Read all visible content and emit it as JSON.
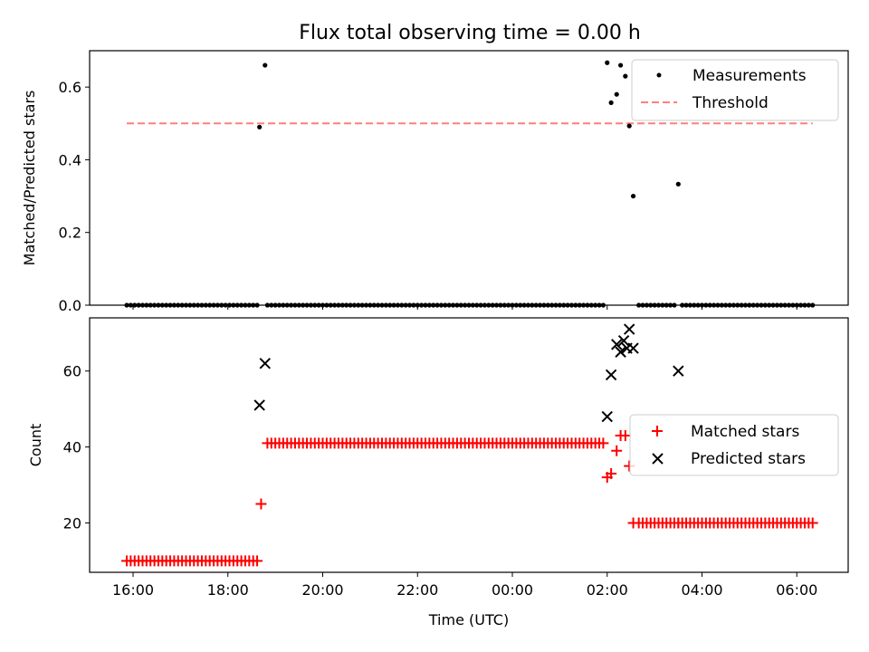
{
  "chart_data": [
    {
      "type": "scatter",
      "title": "Flux total observing time = 0.00 h",
      "xlabel": "",
      "ylabel": "Matched/Predicted stars",
      "xlim": [
        "15:05",
        "07:05"
      ],
      "ylim": [
        0,
        0.7
      ],
      "x_ticks": [
        "16:00",
        "18:00",
        "20:00",
        "22:00",
        "00:00",
        "02:00",
        "04:00",
        "06:00"
      ],
      "y_ticks": [
        "0.0",
        "0.2",
        "0.4",
        "0.6"
      ],
      "legend_position": "upper right",
      "series": [
        {
          "name": "Measurements",
          "marker": "dot",
          "color": "#000000",
          "points": [
            {
              "t": "18:40",
              "y": 0.49
            },
            {
              "t": "18:47",
              "y": 0.66
            },
            {
              "t": "02:00",
              "y": 0.667
            },
            {
              "t": "02:05",
              "y": 0.557
            },
            {
              "t": "02:12",
              "y": 0.58
            },
            {
              "t": "02:17",
              "y": 0.66
            },
            {
              "t": "02:23",
              "y": 0.63
            },
            {
              "t": "02:28",
              "y": 0.493
            },
            {
              "t": "02:33",
              "y": 0.3
            },
            {
              "t": "03:30",
              "y": 0.333
            }
          ],
          "zero_runs": [
            {
              "start": "15:52",
              "end": "18:40",
              "step_min": 5,
              "y": 0
            },
            {
              "start": "18:50",
              "end": "01:57",
              "step_min": 5,
              "y": 0
            },
            {
              "start": "02:40",
              "end": "03:26",
              "step_min": 5,
              "y": 0
            },
            {
              "start": "03:35",
              "end": "06:23",
              "step_min": 5,
              "y": 0
            }
          ]
        },
        {
          "name": "Threshold",
          "style": "dashed",
          "color": "#ff7f7f",
          "x": [
            "15:52",
            "06:20"
          ],
          "y": [
            0.5,
            0.5
          ]
        }
      ]
    },
    {
      "type": "scatter",
      "title": "",
      "xlabel": "Time (UTC)",
      "ylabel": "Count",
      "xlim": [
        "15:05",
        "07:05"
      ],
      "ylim": [
        7,
        74
      ],
      "x_ticks": [
        "16:00",
        "18:00",
        "20:00",
        "22:00",
        "00:00",
        "02:00",
        "04:00",
        "06:00"
      ],
      "y_ticks": [
        "20",
        "40",
        "60"
      ],
      "legend_position": "center right",
      "series": [
        {
          "name": "Matched stars",
          "marker": "plus",
          "color": "#ff0000",
          "runs": [
            {
              "start": "15:52",
              "end": "18:37",
              "step_min": 5,
              "y": 10
            },
            {
              "start": "18:50",
              "end": "01:57",
              "step_min": 5,
              "y": 41
            },
            {
              "start": "02:40",
              "end": "06:23",
              "step_min": 5,
              "y": 20
            }
          ],
          "points": [
            {
              "t": "18:42",
              "y": 25
            },
            {
              "t": "02:00",
              "y": 32
            },
            {
              "t": "02:05",
              "y": 33
            },
            {
              "t": "02:12",
              "y": 39
            },
            {
              "t": "02:17",
              "y": 43
            },
            {
              "t": "02:23",
              "y": 43
            },
            {
              "t": "02:28",
              "y": 35
            },
            {
              "t": "02:33",
              "y": 20
            },
            {
              "t": "03:30",
              "y": 20
            }
          ]
        },
        {
          "name": "Predicted stars",
          "marker": "x",
          "color": "#000000",
          "points": [
            {
              "t": "18:40",
              "y": 51
            },
            {
              "t": "18:47",
              "y": 62
            },
            {
              "t": "02:00",
              "y": 48
            },
            {
              "t": "02:05",
              "y": 59
            },
            {
              "t": "02:12",
              "y": 67
            },
            {
              "t": "02:17",
              "y": 65
            },
            {
              "t": "02:21",
              "y": 68
            },
            {
              "t": "02:25",
              "y": 66
            },
            {
              "t": "02:28",
              "y": 71
            },
            {
              "t": "02:33",
              "y": 66
            },
            {
              "t": "03:30",
              "y": 60
            }
          ]
        }
      ]
    }
  ]
}
